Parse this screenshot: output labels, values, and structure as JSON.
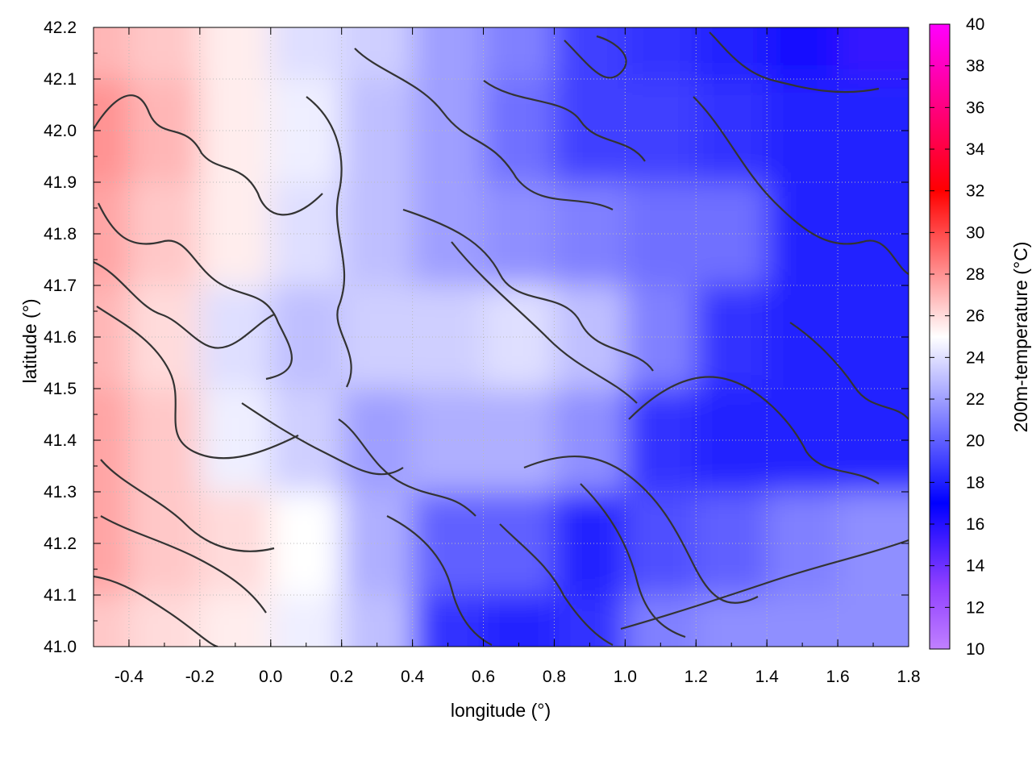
{
  "chart_data": {
    "type": "heatmap",
    "title": "",
    "xlabel": "longitude (°)",
    "ylabel": "latitude (°)",
    "colorbar_label": "200m-temperature (°C)",
    "xlim": [
      -0.5,
      1.8
    ],
    "ylim": [
      41.0,
      42.2
    ],
    "clim": [
      10,
      40
    ],
    "x_ticks": [
      -0.4,
      -0.2,
      0.0,
      0.2,
      0.4,
      0.6,
      0.8,
      1.0,
      1.2,
      1.4,
      1.6,
      1.8
    ],
    "x_tick_labels": [
      "-0.4",
      "-0.2",
      "0.0",
      "0.2",
      "0.4",
      "0.6",
      "0.8",
      "1.0",
      "1.2",
      "1.4",
      "1.6",
      "1.8"
    ],
    "y_ticks": [
      41.0,
      41.1,
      41.2,
      41.3,
      41.4,
      41.5,
      41.6,
      41.7,
      41.8,
      41.9,
      42.0,
      42.1,
      42.2
    ],
    "y_tick_labels": [
      "41.0",
      "41.1",
      "41.2",
      "41.3",
      "41.4",
      "41.5",
      "41.6",
      "41.7",
      "41.8",
      "41.9",
      "42.0",
      "42.1",
      "42.2"
    ],
    "colorbar_ticks": [
      10,
      12,
      14,
      16,
      18,
      20,
      22,
      24,
      26,
      28,
      30,
      32,
      34,
      36,
      38,
      40
    ],
    "colorbar_tick_labels": [
      "10",
      "12",
      "14",
      "16",
      "18",
      "20",
      "22",
      "24",
      "26",
      "28",
      "30",
      "32",
      "34",
      "36",
      "38",
      "40"
    ],
    "colormap": [
      {
        "value": 10,
        "color": "#c080ff"
      },
      {
        "value": 13,
        "color": "#9040ff"
      },
      {
        "value": 17,
        "color": "#0000ff"
      },
      {
        "value": 25,
        "color": "#ffffff"
      },
      {
        "value": 32,
        "color": "#ff0000"
      },
      {
        "value": 40,
        "color": "#ff00ff"
      }
    ],
    "grid": true,
    "contours": true,
    "temperature_field_approx": {
      "x": [
        -0.5,
        -0.3,
        -0.1,
        0.1,
        0.3,
        0.5,
        0.7,
        0.9,
        1.1,
        1.3,
        1.5,
        1.7,
        1.8
      ],
      "y": [
        42.2,
        42.0,
        41.8,
        41.6,
        41.4,
        41.2,
        41.0
      ],
      "z": [
        [
          27,
          26.5,
          25.5,
          24,
          23.5,
          22,
          21,
          19,
          18.5,
          18,
          16.5,
          15.5,
          15.5
        ],
        [
          28,
          27,
          25.5,
          24.5,
          23,
          22,
          20.5,
          19,
          19,
          18.5,
          18,
          18,
          18
        ],
        [
          27.5,
          26.5,
          25.5,
          24,
          23,
          22,
          21.5,
          21,
          20.5,
          20.5,
          18,
          18,
          18
        ],
        [
          27,
          26,
          24,
          23,
          23.5,
          23.5,
          24,
          23,
          21,
          18.5,
          18,
          18,
          18
        ],
        [
          27.5,
          26.5,
          24.5,
          23.5,
          22,
          22.5,
          22.5,
          21.5,
          18.5,
          18,
          18,
          18,
          18
        ],
        [
          27.5,
          26.5,
          26,
          25,
          22.5,
          20,
          20,
          18,
          19.5,
          20,
          21,
          21.5,
          21.5
        ],
        [
          26.5,
          26,
          25.5,
          24.5,
          23,
          18.5,
          18,
          18.5,
          21,
          21.5,
          21.5,
          21.5,
          21.5
        ]
      ]
    }
  }
}
